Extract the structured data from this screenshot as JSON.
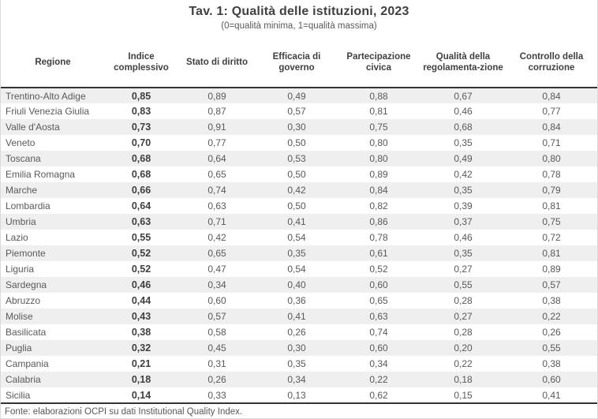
{
  "chart_data": {
    "type": "table",
    "title": "Tav. 1: Qualità delle istituzioni, 2023",
    "subtitle": "(0=qualità minima, 1=qualità massima)",
    "columns": [
      "Regione",
      "Indice complessivo",
      "Stato di diritto",
      "Efficacia di governo",
      "Partecipazione civica",
      "Qualità della regolamenta-zione",
      "Controllo della corruzione"
    ],
    "rows": [
      [
        "Trentino-Alto Adige",
        "0,85",
        "0,89",
        "0,49",
        "0,88",
        "0,67",
        "0,84"
      ],
      [
        "Friuli Venezia Giulia",
        "0,83",
        "0,87",
        "0,57",
        "0,81",
        "0,46",
        "0,77"
      ],
      [
        "Valle d'Aosta",
        "0,73",
        "0,91",
        "0,30",
        "0,75",
        "0,68",
        "0,84"
      ],
      [
        "Veneto",
        "0,70",
        "0,77",
        "0,50",
        "0,80",
        "0,35",
        "0,71"
      ],
      [
        "Toscana",
        "0,68",
        "0,64",
        "0,53",
        "0,80",
        "0,49",
        "0,80"
      ],
      [
        "Emilia Romagna",
        "0,68",
        "0,65",
        "0,50",
        "0,89",
        "0,42",
        "0,78"
      ],
      [
        "Marche",
        "0,66",
        "0,74",
        "0,42",
        "0,84",
        "0,35",
        "0,79"
      ],
      [
        "Lombardia",
        "0,64",
        "0,63",
        "0,50",
        "0,82",
        "0,39",
        "0,81"
      ],
      [
        "Umbria",
        "0,63",
        "0,71",
        "0,41",
        "0,86",
        "0,37",
        "0,75"
      ],
      [
        "Lazio",
        "0,55",
        "0,42",
        "0,54",
        "0,78",
        "0,46",
        "0,72"
      ],
      [
        "Piemonte",
        "0,52",
        "0,65",
        "0,35",
        "0,61",
        "0,35",
        "0,81"
      ],
      [
        "Liguria",
        "0,52",
        "0,47",
        "0,54",
        "0,52",
        "0,27",
        "0,89"
      ],
      [
        "Sardegna",
        "0,46",
        "0,34",
        "0,40",
        "0,60",
        "0,55",
        "0,57"
      ],
      [
        "Abruzzo",
        "0,44",
        "0,60",
        "0,36",
        "0,65",
        "0,28",
        "0,38"
      ],
      [
        "Molise",
        "0,43",
        "0,57",
        "0,41",
        "0,63",
        "0,27",
        "0,22"
      ],
      [
        "Basilicata",
        "0,38",
        "0,58",
        "0,26",
        "0,74",
        "0,28",
        "0,26"
      ],
      [
        "Puglia",
        "0,32",
        "0,45",
        "0,30",
        "0,60",
        "0,20",
        "0,55"
      ],
      [
        "Campania",
        "0,21",
        "0,31",
        "0,35",
        "0,34",
        "0,22",
        "0,38"
      ],
      [
        "Calabria",
        "0,18",
        "0,26",
        "0,34",
        "0,22",
        "0,18",
        "0,60"
      ],
      [
        "Sicilia",
        "0,14",
        "0,33",
        "0,13",
        "0,62",
        "0,15",
        "0,41"
      ]
    ],
    "footer": "Fonte: elaborazioni OCPI su dati Institutional Quality Index."
  },
  "colors": {
    "title_text": "#404040",
    "body_text": "#595959",
    "stripe": "#efefef",
    "heavy_border": "#333333",
    "frame_border": "#d9d9d9"
  }
}
